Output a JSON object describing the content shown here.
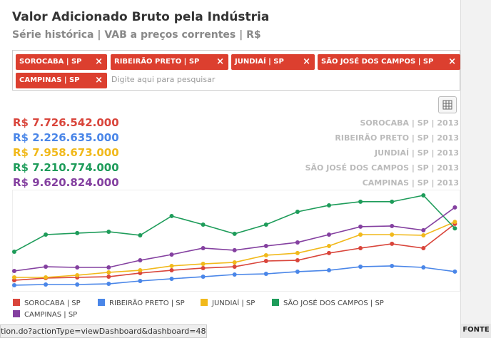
{
  "header": {
    "title": "Valor Adicionado Bruto pela Indústria",
    "subtitle": "Série histórica | VAB a preços correntes | R$"
  },
  "filter": {
    "tags": [
      "SOROCABA | SP",
      "RIBEIRÃO PRETO | SP",
      "JUNDIAÍ | SP",
      "SÃO JOSÉ DOS CAMPOS | SP",
      "CAMPINAS | SP"
    ],
    "placeholder": "Digite aqui para pesquisar"
  },
  "summary": [
    {
      "value_label": "R$ 7.726.542.000",
      "caption": "SOROCABA | SP | 2013"
    },
    {
      "value_label": "R$ 2.226.635.000",
      "caption": "RIBEIRÃO PRETO | SP | 2013"
    },
    {
      "value_label": "R$ 7.958.673.000",
      "caption": "JUNDIAÍ | SP | 2013"
    },
    {
      "value_label": "R$ 7.210.774.000",
      "caption": "SÃO JOSÉ DOS CAMPOS | SP | 2013"
    },
    {
      "value_label": "R$ 9.620.824.000",
      "caption": "CAMPINAS | SP | 2013"
    }
  ],
  "chart_data": {
    "type": "line",
    "ylim": [
      0,
      11500000000
    ],
    "legend": "bottom",
    "series": [
      {
        "name": "SOROCABA | SP",
        "color": "#d9453b",
        "values": [
          1230000000,
          1480000000,
          1560000000,
          1640000000,
          2060000000,
          2380000000,
          2630000000,
          2790000000,
          3450000000,
          3530000000,
          4360000000,
          4930000000,
          5430000000,
          4930000000,
          7726542000
        ]
      },
      {
        "name": "RIBEIRÃO PRETO | SP",
        "color": "#4a86e8",
        "values": [
          660000000,
          740000000,
          740000000,
          820000000,
          1150000000,
          1400000000,
          1640000000,
          1890000000,
          1970000000,
          2220000000,
          2380000000,
          2790000000,
          2880000000,
          2710000000,
          2226635000
        ]
      },
      {
        "name": "JUNDIAÍ | SP",
        "color": "#f1b91b",
        "values": [
          1560000000,
          1560000000,
          1810000000,
          2140000000,
          2380000000,
          2880000000,
          3120000000,
          3290000000,
          4110000000,
          4360000000,
          5180000000,
          6490000000,
          6490000000,
          6410000000,
          7958673000
        ]
      },
      {
        "name": "SÃO JOSÉ DOS CAMPOS | SP",
        "color": "#1e9c5a",
        "values": [
          4520000000,
          6490000000,
          6660000000,
          6820000000,
          6410000000,
          8630000000,
          7640000000,
          6580000000,
          7640000000,
          9120000000,
          9860000000,
          10280000000,
          10280000000,
          11010000000,
          7210774000
        ]
      },
      {
        "name": "CAMPINAS | SP",
        "color": "#8440a0",
        "values": [
          2300000000,
          2790000000,
          2710000000,
          2710000000,
          3530000000,
          4190000000,
          4930000000,
          4690000000,
          5180000000,
          5590000000,
          6490000000,
          7400000000,
          7480000000,
          6990000000,
          9620824000
        ]
      }
    ]
  },
  "status": {
    "url": "tion.do?actionType=viewDashboard&dashboard=487",
    "button": "FONTE"
  }
}
